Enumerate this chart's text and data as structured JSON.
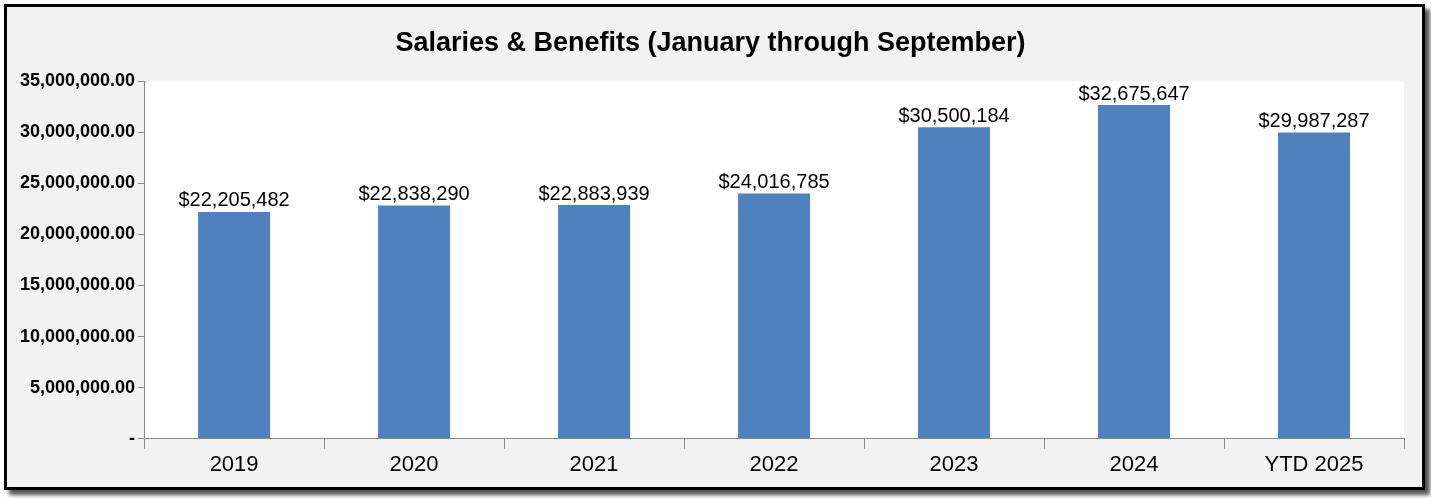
{
  "chart_data": {
    "type": "bar",
    "title": "Salaries & Benefits (January through September)",
    "categories": [
      "2019",
      "2020",
      "2021",
      "2022",
      "2023",
      "2024",
      "YTD 2025"
    ],
    "values": [
      22205482,
      22838290,
      22883939,
      24016785,
      30500184,
      32675647,
      29987287
    ],
    "value_labels": [
      "$22,205,482",
      "$22,838,290",
      "$22,883,939",
      "$24,016,785",
      "$30,500,184",
      "$32,675,647",
      "$29,987,287"
    ],
    "color": "#4f81bd",
    "ylim": [
      0,
      35000000
    ],
    "yticks": [
      {
        "value": 0,
        "label": "-"
      },
      {
        "value": 5000000,
        "label": "5,000,000.00"
      },
      {
        "value": 10000000,
        "label": "10,000,000.00"
      },
      {
        "value": 15000000,
        "label": "15,000,000.00"
      },
      {
        "value": 20000000,
        "label": "20,000,000.00"
      },
      {
        "value": 25000000,
        "label": "25,000,000.00"
      },
      {
        "value": 30000000,
        "label": "30,000,000.00"
      },
      {
        "value": 35000000,
        "label": "35,000,000.00"
      }
    ],
    "grid": false,
    "legend": false
  }
}
